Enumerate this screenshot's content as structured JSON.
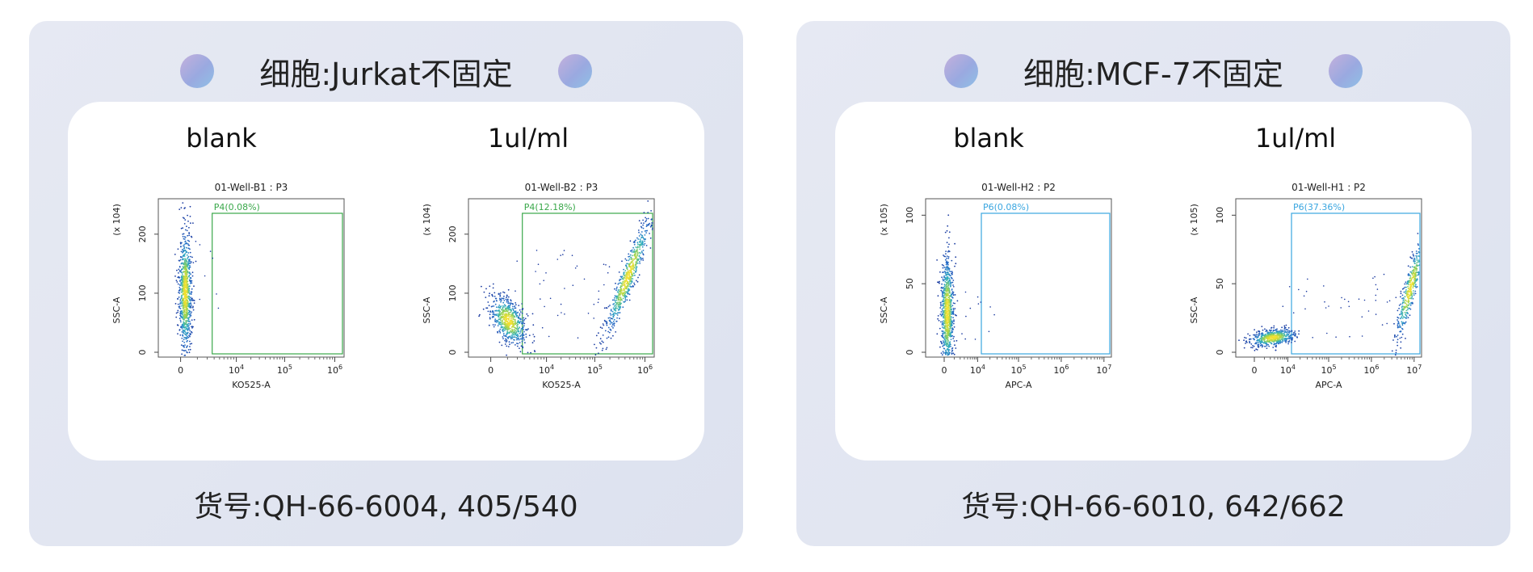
{
  "panels": [
    {
      "title": "细胞:Jurkat不固定",
      "footer": "货号:QH-66-6004, 405/540"
    },
    {
      "title": "细胞:MCF-7不固定",
      "footer": "货号:QH-66-6010, 642/662"
    }
  ],
  "colors": {
    "card_bg": "#e2e6f1",
    "gate_green": "#3aa84a",
    "gate_blue": "#3aa6e0",
    "dot_gradient": [
      "#c4b0dc",
      "#8fc0e6"
    ],
    "density_low": "#1b3aa0",
    "density_mid": "#2fb0c0",
    "density_high": "#f2e030"
  },
  "chart_data": [
    {
      "type": "scatter",
      "label": "blank",
      "title": "01-Well-B1 : P3",
      "xlabel": "KO525-A",
      "ylabel": "SSC-A",
      "yunit": "(x 10^4)",
      "xscale": "biexponential",
      "xticks": [
        "0",
        "10^4",
        "10^5",
        "10^6"
      ],
      "yticks": [
        0,
        100,
        200
      ],
      "ylim": [
        0,
        260
      ],
      "gate": {
        "name": "P4",
        "percent_label": "P4(0.08%)",
        "percent": 0.08,
        "color": "#3aa84a"
      }
    },
    {
      "type": "scatter",
      "label": "1ul/ml",
      "title": "01-Well-B2 : P3",
      "xlabel": "KO525-A",
      "ylabel": "SSC-A",
      "yunit": "(x 10^4)",
      "xscale": "biexponential",
      "xticks": [
        "0",
        "10^4",
        "10^5",
        "10^6"
      ],
      "yticks": [
        0,
        100,
        200
      ],
      "ylim": [
        0,
        260
      ],
      "gate": {
        "name": "P4",
        "percent_label": "P4(12.18%)",
        "percent": 12.18,
        "color": "#3aa84a"
      }
    },
    {
      "type": "scatter",
      "label": "blank",
      "title": "01-Well-H2 : P2",
      "xlabel": "APC-A",
      "ylabel": "SSC-A",
      "yunit": "(x 10^5)",
      "xscale": "biexponential",
      "xticks": [
        "0",
        "10^4",
        "10^5",
        "10^6",
        "10^7"
      ],
      "yticks": [
        0,
        50,
        100
      ],
      "ylim": [
        0,
        112
      ],
      "gate": {
        "name": "P6",
        "percent_label": "P6(0.08%)",
        "percent": 0.08,
        "color": "#3aa6e0"
      }
    },
    {
      "type": "scatter",
      "label": "1ul/ml",
      "title": "01-Well-H1 : P2",
      "xlabel": "APC-A",
      "ylabel": "SSC-A",
      "yunit": "(x 10^5)",
      "xscale": "biexponential",
      "xticks": [
        "0",
        "10^4",
        "10^5",
        "10^6",
        "10^7"
      ],
      "yticks": [
        0,
        50,
        100
      ],
      "ylim": [
        0,
        112
      ],
      "gate": {
        "name": "P6",
        "percent_label": "P6(37.36%)",
        "percent": 37.36,
        "color": "#3aa6e0"
      }
    }
  ]
}
